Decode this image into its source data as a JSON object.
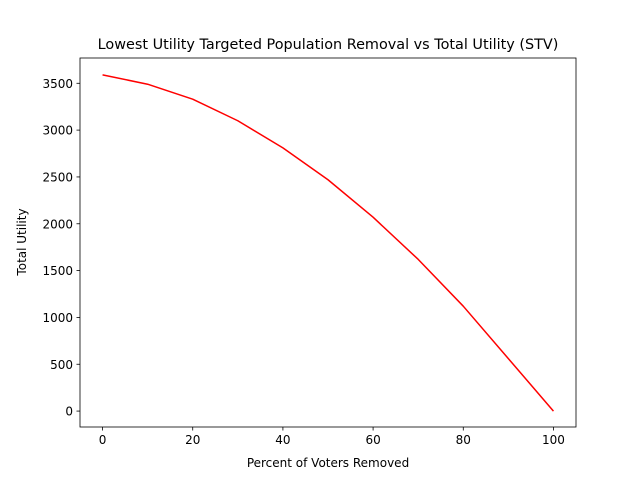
{
  "chart_data": {
    "type": "line",
    "title": "Lowest Utility Targeted Population Removal vs Total Utility (STV)",
    "xlabel": "Percent of Voters Removed",
    "ylabel": "Total Utility",
    "xlim": [
      -5,
      105
    ],
    "ylim": [
      -170,
      3770
    ],
    "x_ticks": [
      0,
      20,
      40,
      60,
      80,
      100
    ],
    "y_ticks": [
      0,
      500,
      1000,
      1500,
      2000,
      2500,
      3000,
      3500
    ],
    "grid": false,
    "legend": "none",
    "series": [
      {
        "color": "#ff0000",
        "x": [
          0,
          10,
          20,
          30,
          40,
          50,
          60,
          70,
          80,
          90,
          100
        ],
        "y": [
          3590,
          3490,
          3330,
          3100,
          2810,
          2470,
          2070,
          1620,
          1120,
          560,
          0
        ]
      }
    ]
  }
}
